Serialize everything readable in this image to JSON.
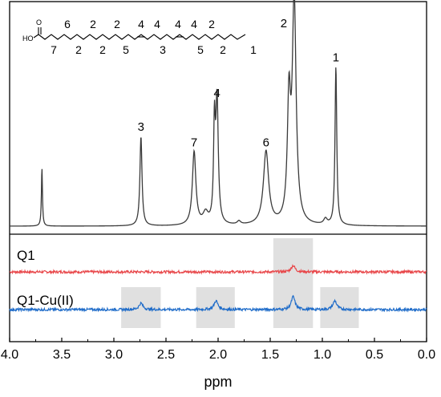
{
  "chart_data": {
    "type": "line",
    "xlabel": "ppm",
    "xlim": [
      4.0,
      0.0
    ],
    "x_reversed": true,
    "xticks": [
      "4.0",
      "3.5",
      "3.0",
      "2.5",
      "2.0",
      "1.5",
      "1.0",
      "0.5",
      "0.0"
    ],
    "colors": {
      "frame": "#000000",
      "reference": "#3a3a3a",
      "q1": "#e8474a",
      "q1cu": "#1f6cc9",
      "highlight": "#d4d4d4"
    },
    "reference_spectrum": {
      "peaks": [
        {
          "ppm": 3.69,
          "height": 0.26,
          "label": ""
        },
        {
          "ppm": 2.74,
          "height": 0.4,
          "label": "3"
        },
        {
          "ppm": 2.23,
          "height": 0.33,
          "label": "7"
        },
        {
          "ppm": 2.01,
          "height": 0.55,
          "label": "4"
        },
        {
          "ppm": 1.54,
          "height": 0.33,
          "label": "6"
        },
        {
          "ppm": 1.27,
          "height": 1.0,
          "label": "2"
        },
        {
          "ppm": 0.87,
          "height": 0.71,
          "label": "1"
        }
      ]
    },
    "traces": [
      {
        "label": "Q1",
        "color": "#e8474a",
        "peaks": [
          {
            "ppm": 1.28,
            "height": 0.08
          }
        ]
      },
      {
        "label": "Q1-Cu(II)",
        "color": "#1f6cc9",
        "peaks": [
          {
            "ppm": 2.74,
            "height": 0.08
          },
          {
            "ppm": 2.02,
            "height": 0.11
          },
          {
            "ppm": 1.28,
            "height": 0.16
          },
          {
            "ppm": 0.88,
            "height": 0.11
          }
        ]
      }
    ],
    "highlight_regions": [
      {
        "trace": "Q1-Cu(II)",
        "ppm_range": [
          2.93,
          2.55
        ]
      },
      {
        "trace": "Q1-Cu(II)",
        "ppm_range": [
          2.21,
          1.84
        ]
      },
      {
        "trace": "both",
        "ppm_range": [
          1.47,
          1.09
        ]
      },
      {
        "trace": "Q1-Cu(II)",
        "ppm_range": [
          1.02,
          0.65
        ]
      }
    ]
  },
  "molecule": {
    "hydroxyl": "HO",
    "carbonyl_o": "O",
    "upper_numbers": [
      "6",
      "2",
      "2",
      "4",
      "4",
      "4",
      "4",
      "2"
    ],
    "lower_numbers": [
      "7",
      "2",
      "2",
      "5",
      "3",
      "5",
      "2",
      "1"
    ]
  }
}
